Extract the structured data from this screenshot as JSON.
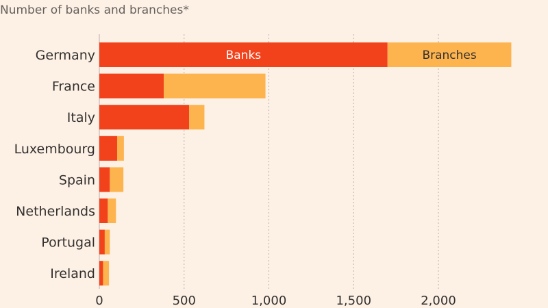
{
  "chart_data": {
    "type": "bar",
    "orientation": "horizontal",
    "stacked": true,
    "subtitle": "Number of banks and branches*",
    "categories": [
      "Germany",
      "France",
      "Italy",
      "Luxembourg",
      "Spain",
      "Netherlands",
      "Portugal",
      "Ireland"
    ],
    "series": [
      {
        "name": "Banks",
        "values": [
          1700,
          380,
          530,
          105,
          62,
          50,
          32,
          22
        ],
        "color": "#f2421c"
      },
      {
        "name": "Branches",
        "values": [
          730,
          600,
          90,
          40,
          80,
          48,
          30,
          35
        ],
        "color": "#fdb44e"
      }
    ],
    "xlim": [
      0,
      2500
    ],
    "xticks": [
      0,
      500,
      1000,
      1500,
      2000
    ],
    "xtick_labels": [
      "0",
      "500",
      "1,000",
      "1,500",
      "2,000"
    ],
    "grid": true,
    "legend": "inline-on-first-bar",
    "label_colors": [
      "#ffffff",
      "#33302e"
    ]
  }
}
